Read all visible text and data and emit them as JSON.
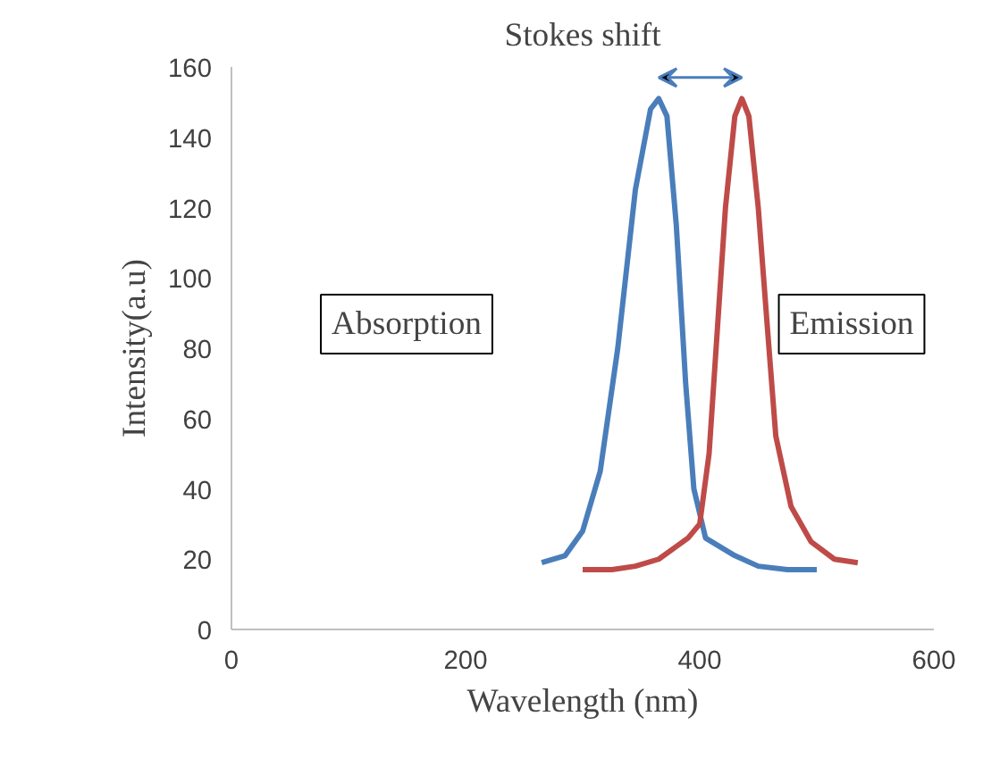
{
  "chart_data": {
    "type": "line",
    "title": "Stokes shift",
    "xlabel": "Wavelength (nm)",
    "ylabel": "Intensity(a.u)",
    "xlim": [
      0,
      600
    ],
    "xticks": [
      0,
      200,
      400,
      600
    ],
    "ylim": [
      0,
      160
    ],
    "yticks": [
      0,
      20,
      40,
      60,
      80,
      100,
      120,
      140,
      160
    ],
    "grid": false,
    "annotations": [
      "Absorption",
      "Emission"
    ],
    "series": [
      {
        "color": "#4a7ebb",
        "x": [
          265,
          285,
          300,
          315,
          330,
          345,
          358,
          365,
          372,
          380,
          388,
          395,
          405,
          430,
          450,
          475,
          500
        ],
        "values": [
          19,
          21,
          28,
          45,
          80,
          125,
          148,
          151,
          146,
          115,
          70,
          40,
          26,
          21,
          18,
          17,
          17
        ]
      },
      {
        "color": "#be4b48",
        "x": [
          300,
          325,
          345,
          365,
          390,
          400,
          408,
          415,
          422,
          430,
          436,
          442,
          450,
          458,
          465,
          478,
          495,
          515,
          535
        ],
        "values": [
          17,
          17,
          18,
          20,
          26,
          30,
          50,
          85,
          120,
          146,
          151,
          146,
          120,
          85,
          55,
          35,
          25,
          20,
          19
        ]
      }
    ]
  }
}
